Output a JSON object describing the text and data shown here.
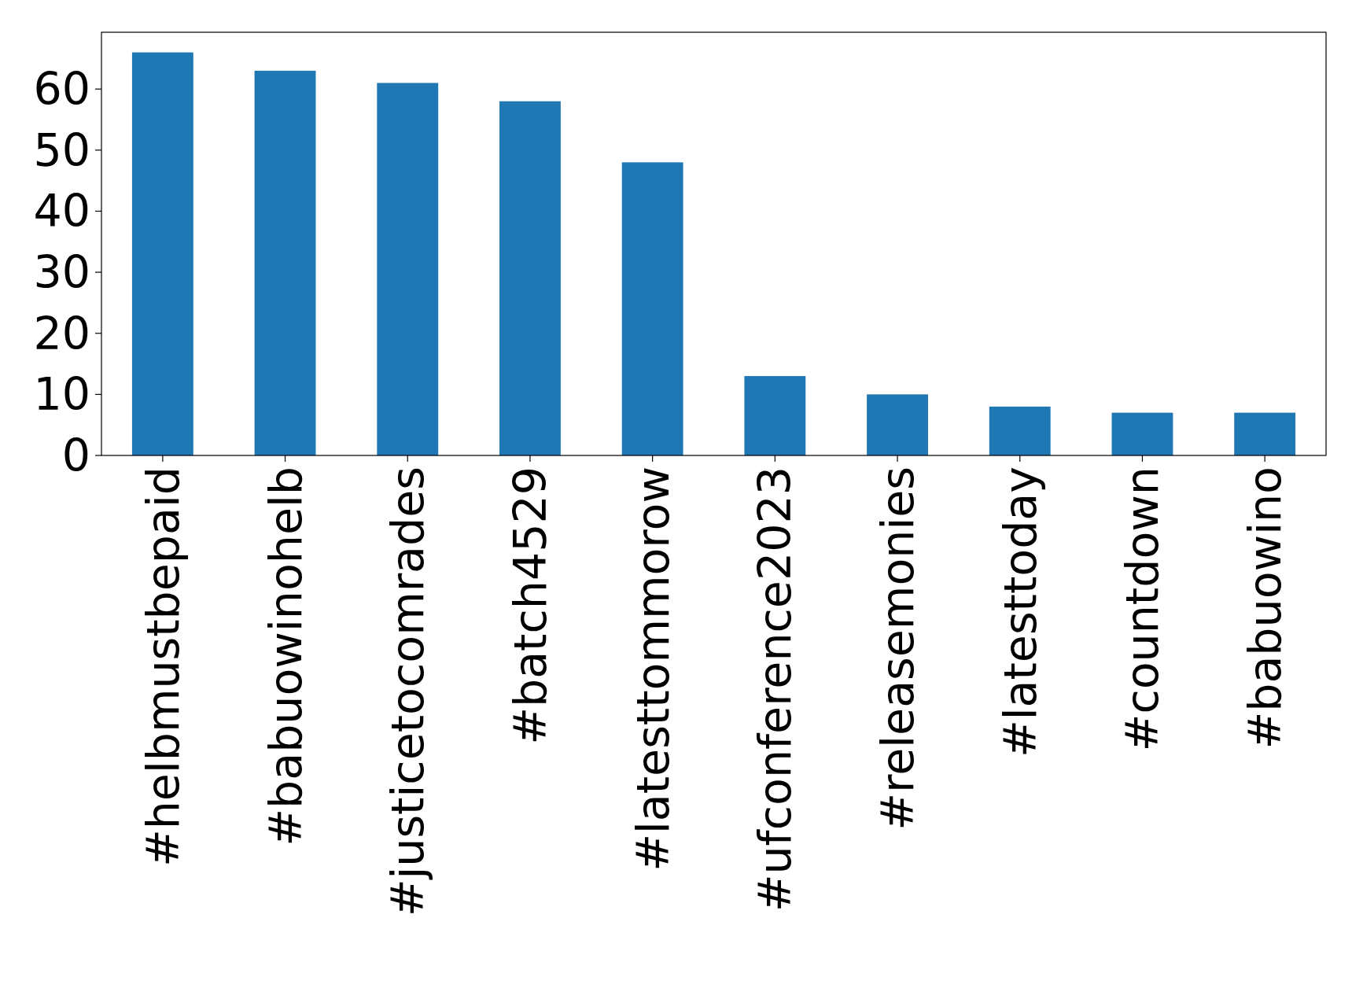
{
  "chart_data": {
    "type": "bar",
    "categories": [
      "#helbmustbepaid",
      "#babuowinohelb",
      "#justicetocomrades",
      "#batch4529",
      "#latesttommorow",
      "#ufconference2023",
      "#releasemonies",
      "#latesttoday",
      "#countdown",
      "#babuowino"
    ],
    "values": [
      66,
      63,
      61,
      58,
      48,
      13,
      10,
      8,
      7,
      7
    ],
    "color": "#1f77b4",
    "ylim": [
      0,
      69.3
    ],
    "yticks": [
      0,
      10,
      20,
      30,
      40,
      50,
      60
    ],
    "grid": false
  }
}
